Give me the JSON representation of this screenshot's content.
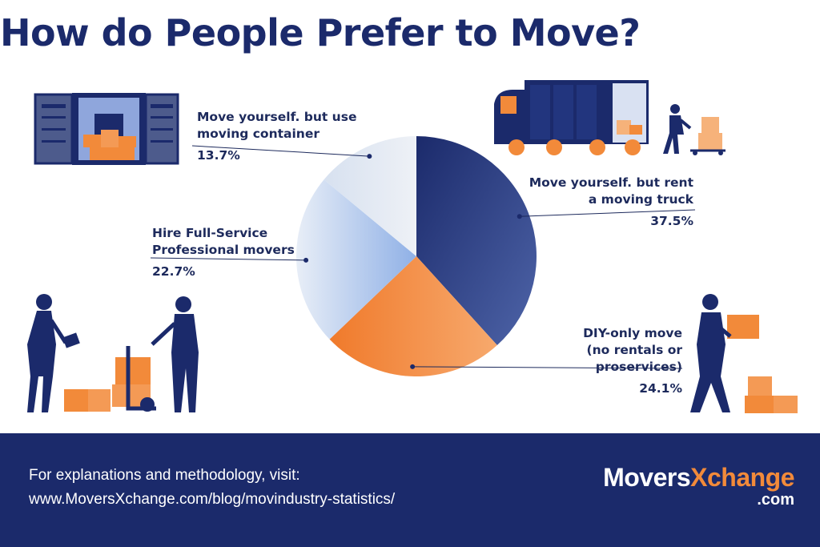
{
  "title": "How do People Prefer to Move?",
  "chart_data": {
    "type": "pie",
    "title": "How do People Prefer to Move?",
    "slices": [
      {
        "line1": "Move yourself. but rent",
        "line2": "a moving truck",
        "value": 37.5,
        "label_value": "37.5%",
        "color": "#27397f"
      },
      {
        "line1": "DIY-only move",
        "line2": "(no rentals or proservices)",
        "value": 24.1,
        "label_value": "24.1%",
        "color": "#f2873a"
      },
      {
        "line1": "Hire Full-Service",
        "line2": "Professional movers",
        "value": 22.7,
        "label_value": "22.7%",
        "color": "#a9c5ee"
      },
      {
        "line1": "Move yourself. but use",
        "line2": "moving container",
        "value": 13.7,
        "label_value": "13.7%",
        "color": "#e2e8f1"
      }
    ]
  },
  "colors": {
    "navy": "#1b2a6b",
    "orange": "#f28a3a",
    "light_blue": "#a9c5ee"
  },
  "icons": [
    "shipping-container-icon",
    "moving-truck-icon",
    "hand-truck-worker-icon",
    "box-carrier-icon",
    "dolly-movers-icon"
  ],
  "footer": {
    "line1": "For explanations and methodology, visit:",
    "line2": "www.MoversXchange.com/blog/movindustry-statistics/"
  },
  "brand": {
    "part1": "Movers",
    "part2": "Xchange",
    "sub": ".com"
  }
}
